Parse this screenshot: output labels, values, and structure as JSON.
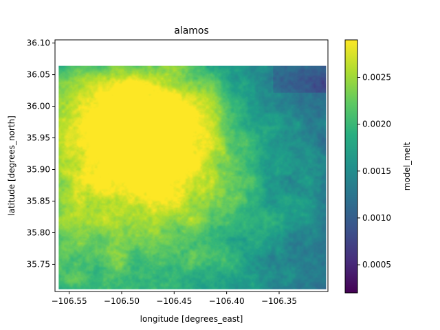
{
  "chart_data": {
    "type": "heatmap",
    "title": "alamos",
    "xlabel": "longitude [degrees_east]",
    "ylabel": "latitude [degrees_north]",
    "xlim": [
      -106.5635,
      -106.3035
    ],
    "ylim": [
      35.707,
      36.105
    ],
    "data_extent": {
      "x": [
        -106.56,
        -106.305
      ],
      "y": [
        35.711,
        36.064
      ]
    },
    "xticks": [
      -106.55,
      -106.5,
      -106.45,
      -106.4,
      -106.35
    ],
    "xtick_labels": [
      "−106.55",
      "−106.50",
      "−106.45",
      "−106.40",
      "−106.35"
    ],
    "yticks": [
      35.75,
      35.8,
      35.85,
      35.9,
      35.95,
      36.0,
      36.05,
      36.1
    ],
    "ytick_labels": [
      "35.75",
      "35.80",
      "35.85",
      "35.90",
      "35.95",
      "36.00",
      "36.05",
      "36.10"
    ],
    "colorbar": {
      "label": "model_melt",
      "range": [
        0.0002,
        0.0029
      ],
      "colormap": "viridis",
      "ticks": [
        0.0005,
        0.001,
        0.0015,
        0.002,
        0.0025
      ],
      "tick_labels": [
        "0.0005",
        "0.0010",
        "0.0015",
        "0.0020",
        "0.0025"
      ]
    },
    "grid": false,
    "legend": "none"
  }
}
